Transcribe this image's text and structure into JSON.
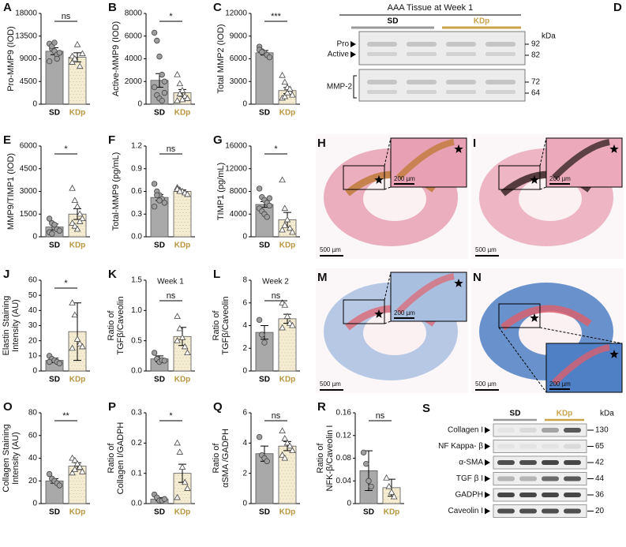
{
  "chart_data": [
    {
      "type": "bar",
      "label": "A",
      "ylabel": [
        "Pro-MMP9 (IOD)"
      ],
      "categories": [
        "SD",
        "KDp"
      ],
      "category_colors": [
        "#000000",
        "#b8963e"
      ],
      "colors": [
        "#a9a9a9",
        "#f4edd4"
      ],
      "values": [
        10500,
        9300
      ],
      "errors": [
        700,
        900
      ],
      "points": [
        [
          12000,
          11000,
          10500,
          9800,
          10200,
          8500,
          11500,
          12200,
          9000
        ],
        [
          9500,
          8800,
          11800,
          7500,
          10000,
          8300,
          9000
        ]
      ],
      "annotation": "ns",
      "ylim": [
        0,
        18000
      ],
      "yticks": [
        0,
        4500,
        9000,
        13500,
        18000
      ]
    },
    {
      "type": "bar",
      "label": "B",
      "ylabel": [
        "Active-MMP9 (IOD)"
      ],
      "categories": [
        "SD",
        "KDp"
      ],
      "category_colors": [
        "#000000",
        "#b8963e"
      ],
      "colors": [
        "#a9a9a9",
        "#f4edd4"
      ],
      "values": [
        2100,
        1000
      ],
      "errors": [
        600,
        300
      ],
      "points": [
        [
          6300,
          5600,
          4200,
          2600,
          2000,
          1500,
          800,
          500,
          300,
          1000
        ],
        [
          2600,
          1800,
          1200,
          700,
          500,
          300,
          900,
          400
        ]
      ],
      "annotation": "*",
      "ylim": [
        0,
        8000
      ],
      "yticks": [
        0,
        2000,
        4000,
        6000,
        8000
      ]
    },
    {
      "type": "bar",
      "label": "C",
      "ylabel": [
        "Total MMP2 (IOD)"
      ],
      "categories": [
        "SD",
        "KDp"
      ],
      "category_colors": [
        "#000000",
        "#b8963e"
      ],
      "colors": [
        "#a9a9a9",
        "#f4edd4"
      ],
      "values": [
        6800,
        1800
      ],
      "errors": [
        300,
        400
      ],
      "points": [
        [
          7600,
          7000,
          6800,
          6500,
          6200,
          7200,
          6900
        ],
        [
          3800,
          2900,
          2200,
          1600,
          1200,
          800,
          1000,
          1500,
          2000
        ]
      ],
      "annotation": "***",
      "ylim": [
        0,
        12000
      ],
      "yticks": [
        0,
        3000,
        6000,
        9000,
        12000
      ]
    },
    {
      "type": "bar",
      "label": "E",
      "ylabel": [
        "MMP9/TIMP1 (IOD)"
      ],
      "categories": [
        "SD",
        "KDp"
      ],
      "category_colors": [
        "#000000",
        "#b8963e"
      ],
      "colors": [
        "#a9a9a9",
        "#f4edd4"
      ],
      "values": [
        650,
        1500
      ],
      "errors": [
        200,
        350
      ],
      "points": [
        [
          1200,
          900,
          600,
          500,
          400,
          300,
          200,
          800
        ],
        [
          3200,
          2400,
          2000,
          1500,
          1200,
          900,
          700,
          500,
          1000
        ]
      ],
      "annotation": "*",
      "ylim": [
        0,
        6000
      ],
      "yticks": [
        0,
        1500,
        3000,
        4500,
        6000
      ]
    },
    {
      "type": "bar",
      "label": "F",
      "ylabel": [
        "Total-MMP9 (pg/mL)"
      ],
      "categories": [
        "SD",
        "KDp"
      ],
      "category_colors": [
        "#000000",
        "#b8963e"
      ],
      "colors": [
        "#a9a9a9",
        "#f4edd4"
      ],
      "values": [
        0.52,
        0.6
      ],
      "errors": [
        0.04,
        0.02
      ],
      "points": [
        [
          0.7,
          0.6,
          0.55,
          0.5,
          0.45,
          0.4,
          0.55,
          0.48
        ],
        [
          0.65,
          0.62,
          0.6,
          0.58,
          0.56,
          0.63,
          0.6
        ]
      ],
      "annotation": "ns",
      "ylim": [
        0,
        1.2
      ],
      "yticks": [
        {
          "value": 0,
          "label": "0.0"
        },
        0.3,
        0.6,
        0.9,
        1.2
      ]
    },
    {
      "type": "bar",
      "label": "G",
      "ylabel": [
        "TIMP1 (pg/mL)"
      ],
      "categories": [
        "SD",
        "KDp"
      ],
      "category_colors": [
        "#000000",
        "#b8963e"
      ],
      "colors": [
        "#a9a9a9",
        "#f4edd4"
      ],
      "values": [
        5700,
        3000
      ],
      "errors": [
        500,
        1300
      ],
      "points": [
        [
          8500,
          7000,
          6500,
          6000,
          5500,
          5000,
          4500,
          4000,
          3500,
          6800
        ],
        [
          10000,
          5000,
          3000,
          1500,
          800,
          1200,
          2000
        ]
      ],
      "annotation": "*",
      "ylim": [
        0,
        16000
      ],
      "yticks": [
        0,
        4000,
        8000,
        12000,
        16000
      ]
    },
    {
      "type": "bar",
      "label": "J",
      "ylabel": [
        "Elastin Staining",
        "Intensity (AU)"
      ],
      "categories": [
        "SD",
        "KDp"
      ],
      "category_colors": [
        "#000000",
        "#b8963e"
      ],
      "colors": [
        "#a9a9a9",
        "#f4edd4"
      ],
      "values": [
        7,
        26
      ],
      "errors": [
        1.5,
        19
      ],
      "points": [
        [
          10,
          8,
          7,
          6,
          5,
          6
        ],
        [
          45,
          37,
          21,
          18,
          16,
          15
        ]
      ],
      "annotation": "*",
      "ylim": [
        0,
        60
      ],
      "yticks": [
        0,
        10,
        20,
        30,
        40,
        50,
        60
      ]
    },
    {
      "type": "bar",
      "label": "K",
      "subtitle": "Week 1",
      "ylabel": [
        "Ratio of",
        "TGFβ/Caveolin"
      ],
      "categories": [
        "SD",
        "KDp"
      ],
      "category_colors": [
        "#000000",
        "#b8963e"
      ],
      "colors": [
        "#a9a9a9",
        "#f4edd4"
      ],
      "values": [
        0.2,
        0.57
      ],
      "errors": [
        0.05,
        0.15
      ],
      "points": [
        [
          0.3,
          0.2,
          0.15,
          0.18,
          0.17
        ],
        [
          0.9,
          0.7,
          0.55,
          0.4,
          0.3,
          0.5
        ]
      ],
      "annotation": "ns",
      "ylim": [
        0,
        1.5
      ],
      "yticks": [
        {
          "value": 0,
          "label": "0.0"
        },
        0.5,
        {
          "value": 1,
          "label": "1.0"
        },
        1.5
      ]
    },
    {
      "type": "bar",
      "label": "L",
      "subtitle": "Week 2",
      "ylabel": [
        "Ratio of",
        "TGFβ/Caveolin"
      ],
      "categories": [
        "SD",
        "KDp"
      ],
      "category_colors": [
        "#000000",
        "#b8963e"
      ],
      "colors": [
        "#a9a9a9",
        "#f4edd4"
      ],
      "values": [
        3.4,
        4.6
      ],
      "errors": [
        0.6,
        0.4
      ],
      "points": [
        [
          4.5,
          3.2,
          2.5
        ],
        [
          6,
          5.8,
          4.8,
          4.2,
          4,
          3.8
        ]
      ],
      "annotation": "ns",
      "ylim": [
        0,
        8
      ],
      "yticks": [
        0,
        2,
        4,
        6,
        8
      ]
    },
    {
      "type": "bar",
      "label": "O",
      "ylabel": [
        "Collagen Staining",
        "Intensity (AU)"
      ],
      "categories": [
        "SD",
        "KDp"
      ],
      "category_colors": [
        "#000000",
        "#b8963e"
      ],
      "colors": [
        "#a9a9a9",
        "#f4edd4"
      ],
      "values": [
        20,
        33
      ],
      "errors": [
        2,
        3
      ],
      "points": [
        [
          26,
          22,
          20,
          18,
          16
        ],
        [
          40,
          38,
          35,
          32,
          28,
          27,
          30
        ]
      ],
      "annotation": "**",
      "ylim": [
        0,
        80
      ],
      "yticks": [
        0,
        20,
        40,
        60,
        80
      ]
    },
    {
      "type": "bar",
      "label": "P",
      "ylabel": [
        "Ratio of",
        "Collagen I/GADPH"
      ],
      "categories": [
        "SD",
        "KDp"
      ],
      "category_colors": [
        "#000000",
        "#b8963e"
      ],
      "colors": [
        "#a9a9a9",
        "#f4edd4"
      ],
      "values": [
        0.015,
        0.1
      ],
      "errors": [
        0.005,
        0.03
      ],
      "points": [
        [
          0.03,
          0.02,
          0.01,
          0.01,
          0.015
        ],
        [
          0.2,
          0.17,
          0.12,
          0.07,
          0.05,
          0.02
        ]
      ],
      "annotation": "*",
      "ylim": [
        0,
        0.3
      ],
      "yticks": [
        {
          "value": 0,
          "label": "0.0"
        },
        0.1,
        0.2,
        0.3
      ]
    },
    {
      "type": "bar",
      "label": "Q",
      "ylabel": [
        "Ratio of",
        "αSMA /GADPH"
      ],
      "categories": [
        "SD",
        "KDp"
      ],
      "category_colors": [
        "#000000",
        "#b8963e"
      ],
      "colors": [
        "#a9a9a9",
        "#f4edd4"
      ],
      "values": [
        3.3,
        3.8
      ],
      "errors": [
        0.5,
        0.3
      ],
      "points": [
        [
          4.4,
          3.2,
          3,
          2.8
        ],
        [
          4.8,
          4.3,
          4,
          3.8,
          3.5,
          3.2,
          3
        ]
      ],
      "annotation": "ns",
      "ylim": [
        0,
        6
      ],
      "yticks": [
        0,
        2,
        4,
        6
      ]
    },
    {
      "type": "bar",
      "label": "R",
      "ylabel": [
        "Ratio of",
        "NFK-β/Caveolin I"
      ],
      "categories": [
        "SD",
        "KDp"
      ],
      "category_colors": [
        "#000000",
        "#b8963e"
      ],
      "colors": [
        "#a9a9a9",
        "#f4edd4"
      ],
      "values": [
        0.058,
        0.028
      ],
      "errors": [
        0.035,
        0.015
      ],
      "points": [
        [
          0.09,
          0.07,
          0.04,
          0.03
        ],
        [
          0.045,
          0.03,
          0.02,
          0.012
        ]
      ],
      "annotation": "ns",
      "ylim": [
        0,
        0.16
      ],
      "yticks": [
        0,
        0.04,
        0.08,
        0.12,
        0.16
      ]
    }
  ],
  "figures": [
    {
      "label": "D",
      "title": "AAA Tissue at Week 1",
      "groups": [
        "SD",
        "KDp"
      ],
      "group_colors": [
        "#999999",
        "#c9a24a"
      ],
      "unit": "kDa",
      "rows": [
        {
          "names": [
            "Pro",
            "Active"
          ],
          "markers": [
            92,
            82
          ]
        },
        {
          "names": [
            "MMP-2"
          ],
          "markers": [
            72,
            64
          ]
        }
      ]
    },
    {
      "label": "H",
      "scale": "500 µm",
      "inset_scale": "200 µm",
      "tissue_color": "#e8a1b4",
      "stain_color": "#c07a3a"
    },
    {
      "label": "I",
      "scale": "500 µm",
      "inset_scale": "200 µm",
      "tissue_color": "#eba9bb",
      "stain_color": "#3a2626"
    },
    {
      "label": "M",
      "scale": "500 µm",
      "inset_scale": "200 µm",
      "tissue_color": "#a9bfe0",
      "stain_color": "#d96f7c"
    },
    {
      "label": "N",
      "scale": "500 µm",
      "inset_scale": "200 µm",
      "tissue_color": "#4f7fc4",
      "stain_color": "#d9606e"
    },
    {
      "label": "S",
      "groups": [
        "SD",
        "KDp"
      ],
      "group_colors": [
        "#999999",
        "#c9a24a"
      ],
      "unit": "kDa",
      "rows": [
        {
          "name": "Collagen I",
          "marker": 130
        },
        {
          "name": "NF Kappa- β",
          "marker": 65
        },
        {
          "name": "α-SMA",
          "marker": 42
        },
        {
          "name": "TGF β I",
          "marker": 44
        },
        {
          "name": "GADPH",
          "marker": 36
        },
        {
          "name": "Caveolin I",
          "marker": 20
        }
      ]
    }
  ]
}
